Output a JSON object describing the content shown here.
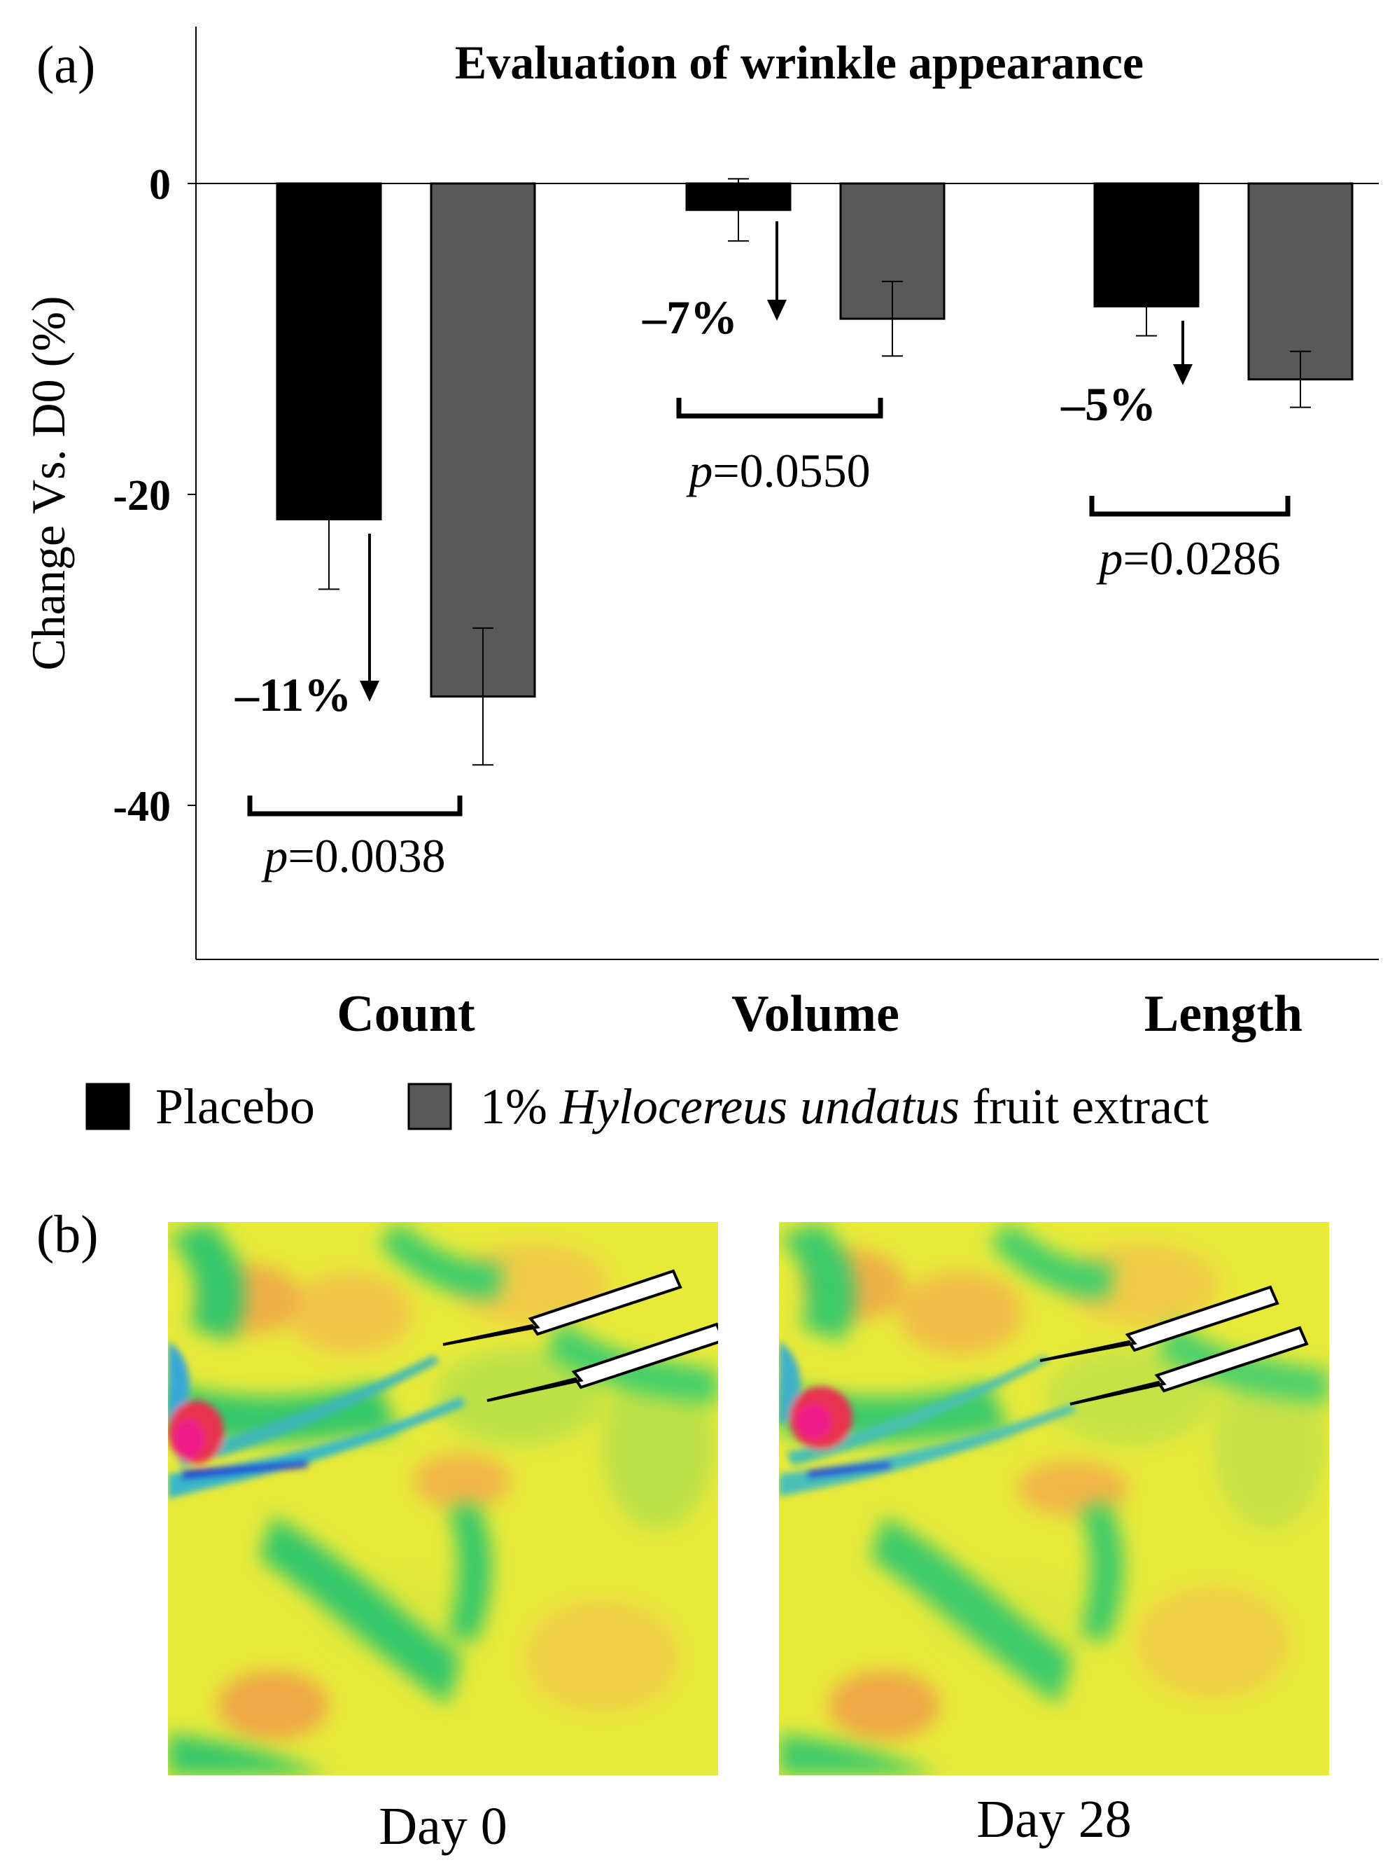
{
  "panel_a": {
    "label": "(a)",
    "title": "Evaluation of wrinkle appearance",
    "ylabel": "Change Vs. D0 (%)"
  },
  "chart_data": {
    "type": "bar",
    "title": "Evaluation of wrinkle appearance",
    "xlabel": "",
    "ylabel": "Change Vs. D0 (%)",
    "ylim": [
      -50,
      10
    ],
    "yticks": [
      0,
      -20,
      -40
    ],
    "ytick_labels": [
      "0",
      "-20",
      "-40"
    ],
    "categories": [
      "Count",
      "Volume",
      "Length"
    ],
    "series": [
      {
        "name": "Placebo",
        "color": "#000000",
        "values": [
          -21.6,
          -1.7,
          -7.9
        ],
        "errors": [
          4.5,
          2.0,
          1.9
        ]
      },
      {
        "name": "1% Hylocereus undatus fruit extract",
        "name_prefix": "1% ",
        "name_italic": "Hylocereus undatus",
        "name_suffix": " fruit extract",
        "color": "#595959",
        "values": [
          -33.0,
          -8.7,
          -12.6
        ],
        "errors": [
          4.4,
          2.4,
          1.8
        ]
      }
    ],
    "differences": [
      "–11%",
      "–7%",
      "–5%"
    ],
    "p_values": [
      "0.0038",
      "0.0550",
      "0.0286"
    ],
    "p_symbol": "p",
    "grid": false,
    "legend_position": "bottom"
  },
  "panel_b": {
    "label": "(b)",
    "captions": [
      "Day 0",
      "Day 28"
    ],
    "image_content": "wrinkle-heatmap"
  }
}
